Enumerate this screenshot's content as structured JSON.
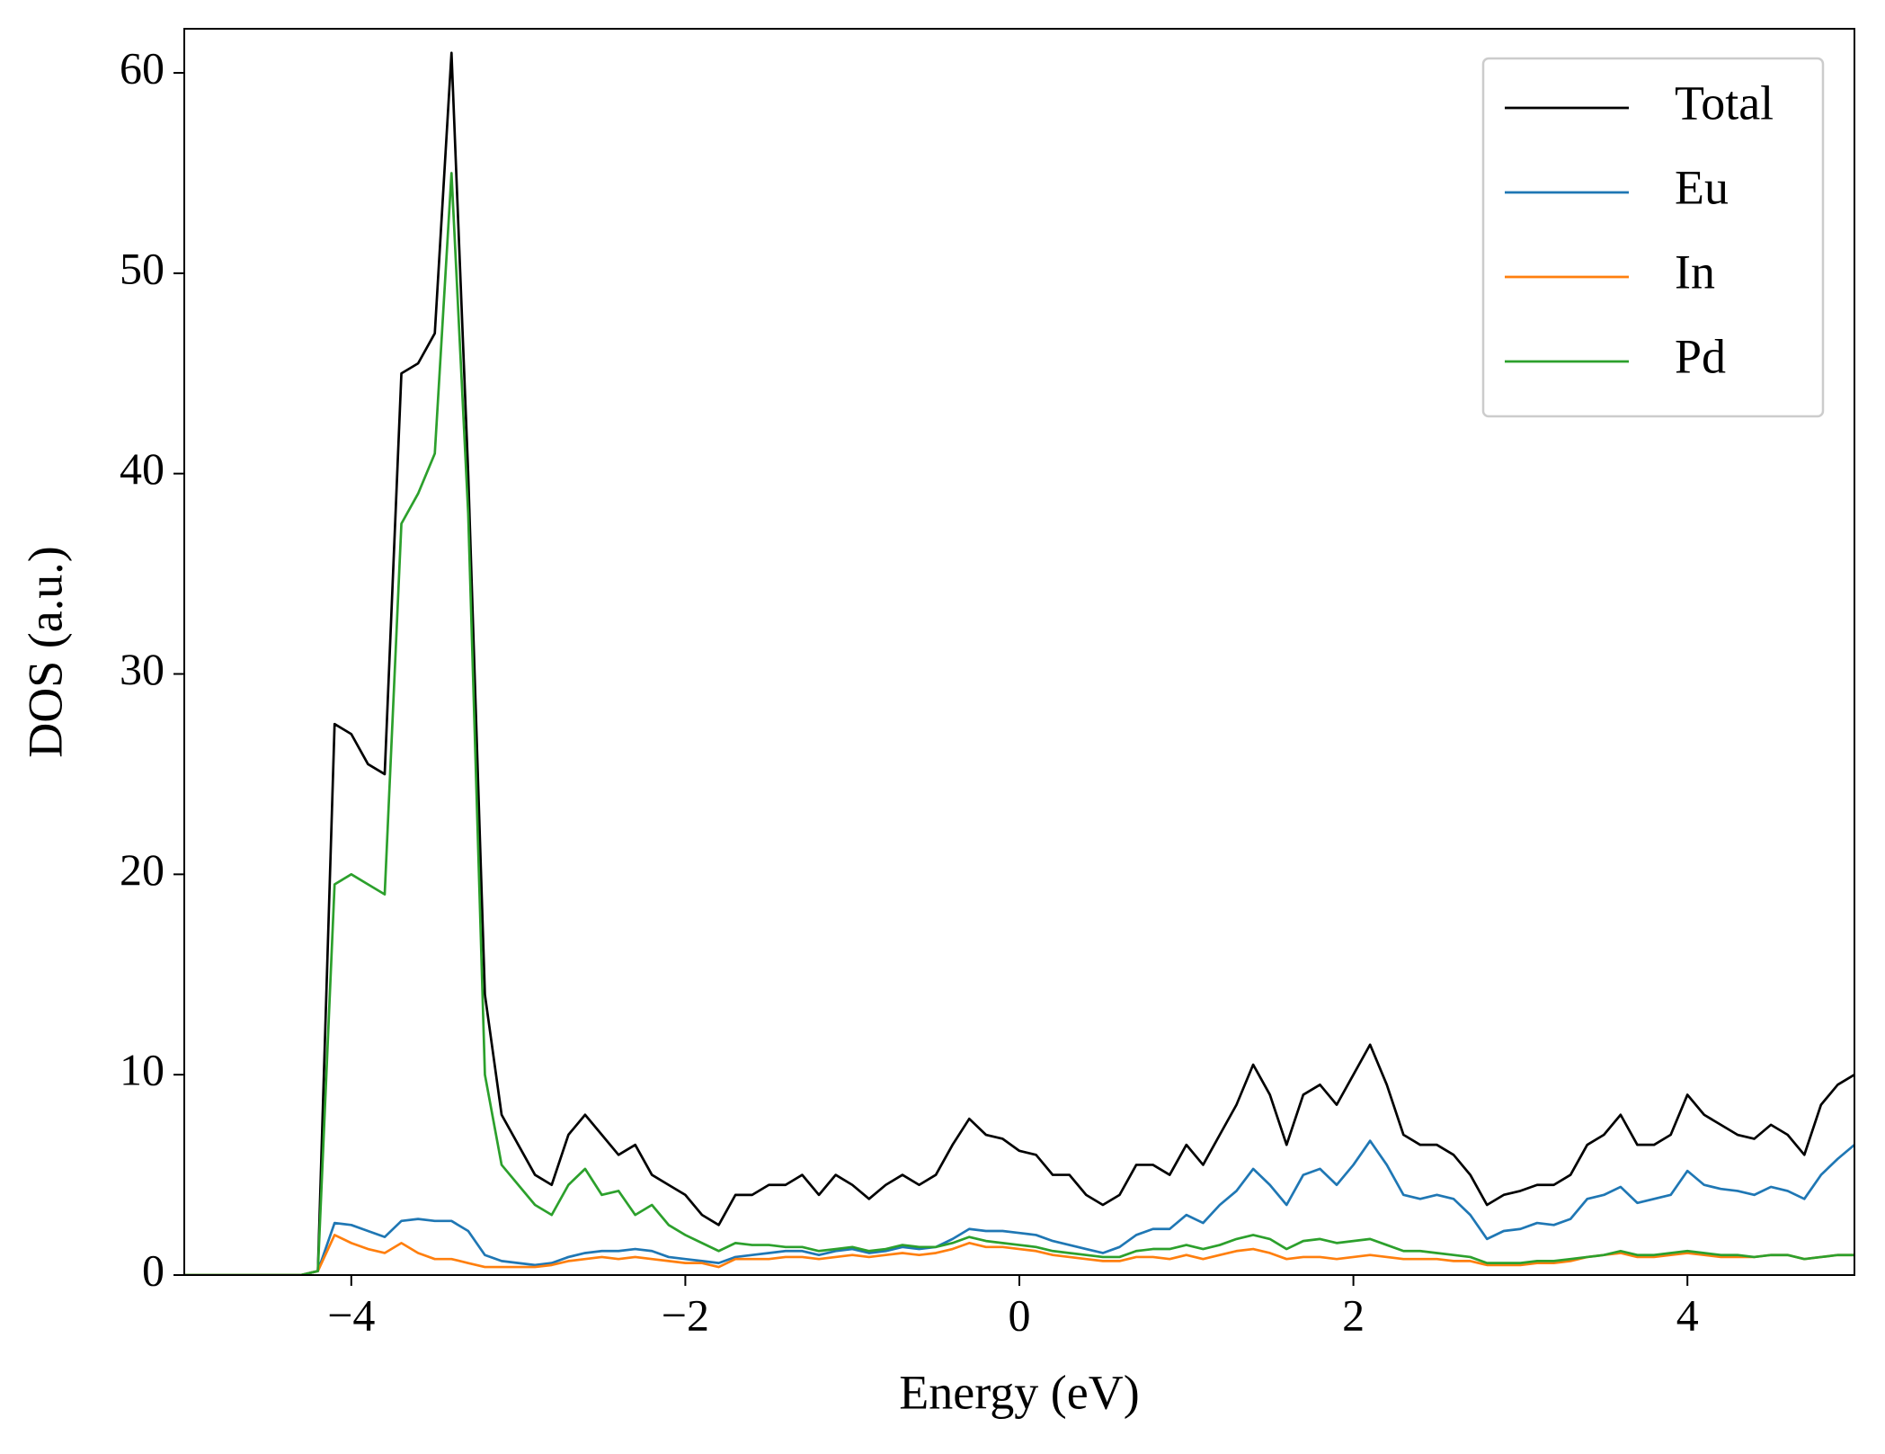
{
  "chart_data": {
    "type": "line",
    "xlabel": "Energy (eV)",
    "ylabel": "DOS (a.u.)",
    "x": [
      -5.0,
      -4.9,
      -4.8,
      -4.7,
      -4.6,
      -4.5,
      -4.4,
      -4.3,
      -4.2,
      -4.1,
      -4.0,
      -3.9,
      -3.8,
      -3.7,
      -3.6,
      -3.5,
      -3.4,
      -3.3,
      -3.2,
      -3.1,
      -3.0,
      -2.9,
      -2.8,
      -2.7,
      -2.6,
      -2.5,
      -2.4,
      -2.3,
      -2.2,
      -2.1,
      -2.0,
      -1.9,
      -1.8,
      -1.7,
      -1.6,
      -1.5,
      -1.4,
      -1.3,
      -1.2,
      -1.1,
      -1.0,
      -0.9,
      -0.8,
      -0.7,
      -0.6,
      -0.5,
      -0.4,
      -0.3,
      -0.2,
      -0.1,
      0.0,
      0.1,
      0.2,
      0.3,
      0.4,
      0.5,
      0.6,
      0.7,
      0.8,
      0.9,
      1.0,
      1.1,
      1.2,
      1.3,
      1.4,
      1.5,
      1.6,
      1.7,
      1.8,
      1.9,
      2.0,
      2.1,
      2.2,
      2.3,
      2.4,
      2.5,
      2.6,
      2.7,
      2.8,
      2.9,
      3.0,
      3.1,
      3.2,
      3.3,
      3.4,
      3.5,
      3.6,
      3.7,
      3.8,
      3.9,
      4.0,
      4.1,
      4.2,
      4.3,
      4.4,
      4.5,
      4.6,
      4.7,
      4.8,
      4.9,
      5.0
    ],
    "series": [
      {
        "name": "Total",
        "color": "#000000",
        "values": [
          0,
          0,
          0,
          0,
          0,
          0,
          0,
          0,
          0.2,
          27.5,
          27,
          25.5,
          25,
          45,
          45.5,
          47,
          61,
          40,
          14,
          8,
          6.5,
          5,
          4.5,
          7,
          8,
          7,
          6,
          6.5,
          5,
          4.5,
          4,
          3,
          2.5,
          4,
          4,
          4.5,
          4.5,
          5,
          4,
          5,
          4.5,
          3.8,
          4.5,
          5,
          4.5,
          5,
          6.5,
          7.8,
          7,
          6.8,
          6.2,
          6,
          5,
          5,
          4,
          3.5,
          4,
          5.5,
          5.5,
          5,
          6.5,
          5.5,
          7,
          8.5,
          10.5,
          9,
          6.5,
          9,
          9.5,
          8.5,
          10,
          11.5,
          9.5,
          7,
          6.5,
          6.5,
          6,
          5,
          3.5,
          4,
          4.2,
          4.5,
          4.5,
          5,
          6.5,
          7,
          8,
          6.5,
          6.5,
          7,
          9,
          8,
          7.5,
          7,
          6.8,
          7.5,
          7,
          6,
          8.5,
          9.5,
          10
        ]
      },
      {
        "name": "Eu",
        "color": "#1f77b4",
        "values": [
          0,
          0,
          0,
          0,
          0,
          0,
          0,
          0,
          0.2,
          2.6,
          2.5,
          2.2,
          1.9,
          2.7,
          2.8,
          2.7,
          2.7,
          2.2,
          1.0,
          0.7,
          0.6,
          0.5,
          0.6,
          0.9,
          1.1,
          1.2,
          1.2,
          1.3,
          1.2,
          0.9,
          0.8,
          0.7,
          0.6,
          0.9,
          1.0,
          1.1,
          1.2,
          1.2,
          1.0,
          1.2,
          1.3,
          1.1,
          1.2,
          1.4,
          1.3,
          1.4,
          1.8,
          2.3,
          2.2,
          2.2,
          2.1,
          2.0,
          1.7,
          1.5,
          1.3,
          1.1,
          1.4,
          2.0,
          2.3,
          2.3,
          3.0,
          2.6,
          3.5,
          4.2,
          5.3,
          4.5,
          3.5,
          5.0,
          5.3,
          4.5,
          5.5,
          6.7,
          5.5,
          4.0,
          3.8,
          4.0,
          3.8,
          3.0,
          1.8,
          2.2,
          2.3,
          2.6,
          2.5,
          2.8,
          3.8,
          4.0,
          4.4,
          3.6,
          3.8,
          4.0,
          5.2,
          4.5,
          4.3,
          4.2,
          4.0,
          4.4,
          4.2,
          3.8,
          5.0,
          5.8,
          6.5
        ]
      },
      {
        "name": "In",
        "color": "#ff7f0e",
        "values": [
          0,
          0,
          0,
          0,
          0,
          0,
          0,
          0,
          0.2,
          2.0,
          1.6,
          1.3,
          1.1,
          1.6,
          1.1,
          0.8,
          0.8,
          0.6,
          0.4,
          0.4,
          0.4,
          0.4,
          0.5,
          0.7,
          0.8,
          0.9,
          0.8,
          0.9,
          0.8,
          0.7,
          0.6,
          0.6,
          0.4,
          0.8,
          0.8,
          0.8,
          0.9,
          0.9,
          0.8,
          0.9,
          1.0,
          0.9,
          1.0,
          1.1,
          1.0,
          1.1,
          1.3,
          1.6,
          1.4,
          1.4,
          1.3,
          1.2,
          1.0,
          0.9,
          0.8,
          0.7,
          0.7,
          0.9,
          0.9,
          0.8,
          1.0,
          0.8,
          1.0,
          1.2,
          1.3,
          1.1,
          0.8,
          0.9,
          0.9,
          0.8,
          0.9,
          1.0,
          0.9,
          0.8,
          0.8,
          0.8,
          0.7,
          0.7,
          0.5,
          0.5,
          0.5,
          0.6,
          0.6,
          0.7,
          0.9,
          1.0,
          1.1,
          0.9,
          0.9,
          1.0,
          1.1,
          1.0,
          0.9,
          0.9,
          0.9,
          1.0,
          1.0,
          0.8,
          0.9,
          1.0,
          1.0
        ]
      },
      {
        "name": "Pd",
        "color": "#2ca02c",
        "values": [
          0,
          0,
          0,
          0,
          0,
          0,
          0,
          0,
          0.2,
          19.5,
          20,
          19.5,
          19,
          37.5,
          39,
          41,
          55,
          38,
          10,
          5.5,
          4.5,
          3.5,
          3,
          4.5,
          5.3,
          4.0,
          4.2,
          3.0,
          3.5,
          2.5,
          2.0,
          1.6,
          1.2,
          1.6,
          1.5,
          1.5,
          1.4,
          1.4,
          1.2,
          1.3,
          1.4,
          1.2,
          1.3,
          1.5,
          1.4,
          1.4,
          1.6,
          1.9,
          1.7,
          1.6,
          1.5,
          1.4,
          1.2,
          1.1,
          1.0,
          0.9,
          0.9,
          1.2,
          1.3,
          1.3,
          1.5,
          1.3,
          1.5,
          1.8,
          2.0,
          1.8,
          1.3,
          1.7,
          1.8,
          1.6,
          1.7,
          1.8,
          1.5,
          1.2,
          1.2,
          1.1,
          1.0,
          0.9,
          0.6,
          0.6,
          0.6,
          0.7,
          0.7,
          0.8,
          0.9,
          1.0,
          1.2,
          1.0,
          1.0,
          1.1,
          1.2,
          1.1,
          1.0,
          1.0,
          0.9,
          1.0,
          1.0,
          0.8,
          0.9,
          1.0,
          1.0
        ]
      }
    ],
    "xlim": [
      -5,
      5
    ],
    "ylim": [
      0,
      62.2
    ],
    "xticks": [
      {
        "value": -4,
        "label": "−4"
      },
      {
        "value": -2,
        "label": "−2"
      },
      0,
      2,
      4
    ],
    "yticks": [
      0,
      10,
      20,
      30,
      40,
      50,
      60
    ],
    "legend": "upper right",
    "grid": false
  }
}
